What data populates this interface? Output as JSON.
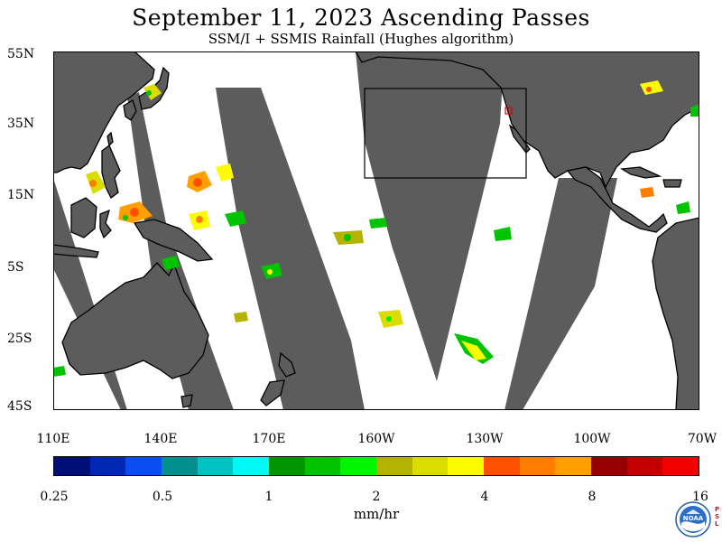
{
  "title": "September 11, 2023  Ascending Passes",
  "subtitle": "SSM/I + SSMIS Rainfall (Hughes algorithm)",
  "lat_labels": [
    "55N",
    "35N",
    "15N",
    "5S",
    "25S",
    "45S"
  ],
  "lon_labels": [
    "110E",
    "140E",
    "170E",
    "160W",
    "130W",
    "100W",
    "70W"
  ],
  "colorbar": {
    "colors": [
      "#000f73",
      "#0028b4",
      "#0a4df5",
      "#00918f",
      "#00c4c4",
      "#00f8f5",
      "#009400",
      "#00c400",
      "#00f500",
      "#b4b400",
      "#dcdc00",
      "#fcfc00",
      "#ff5000",
      "#ff7e00",
      "#ffa000",
      "#960000",
      "#c40000",
      "#f50000"
    ],
    "tick_labels": [
      "0.25",
      "0.5",
      "1",
      "2",
      "4",
      "8",
      "16"
    ]
  },
  "units": "mm/hr",
  "colors": {
    "land": "#5c5c5c",
    "coverage": "#ffffff",
    "box": "#000000"
  },
  "logo": {
    "text": "NOAA",
    "lab": "PSL"
  }
}
